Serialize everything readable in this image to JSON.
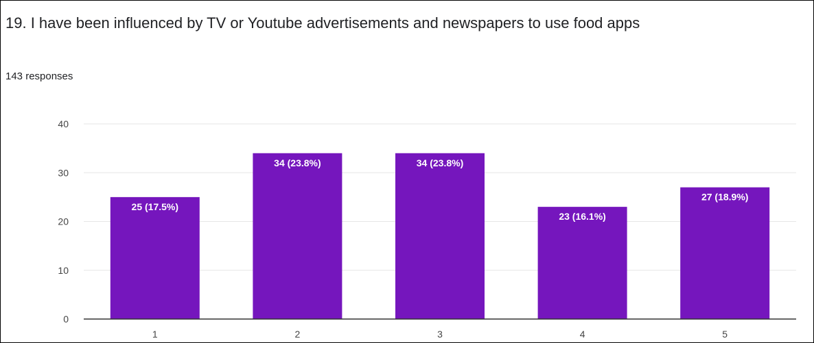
{
  "question": {
    "title": "19. I have been influenced by TV or Youtube advertisements and newspapers to use food apps",
    "response_count": "143 responses"
  },
  "colors": {
    "bar": "#7516bd",
    "grid": "#e6e6e6",
    "axis": "#333333"
  },
  "chart_data": {
    "type": "bar",
    "title": "",
    "xlabel": "",
    "ylabel": "",
    "categories": [
      "1",
      "2",
      "3",
      "4",
      "5"
    ],
    "values": [
      25,
      34,
      34,
      23,
      27
    ],
    "value_labels": [
      "25 (17.5%)",
      "34 (23.8%)",
      "34 (23.8%)",
      "23 (16.1%)",
      "27 (18.9%)"
    ],
    "ylim": [
      0,
      40
    ],
    "yticks": [
      0,
      10,
      20,
      30,
      40
    ],
    "grid": true,
    "legend": "none"
  }
}
